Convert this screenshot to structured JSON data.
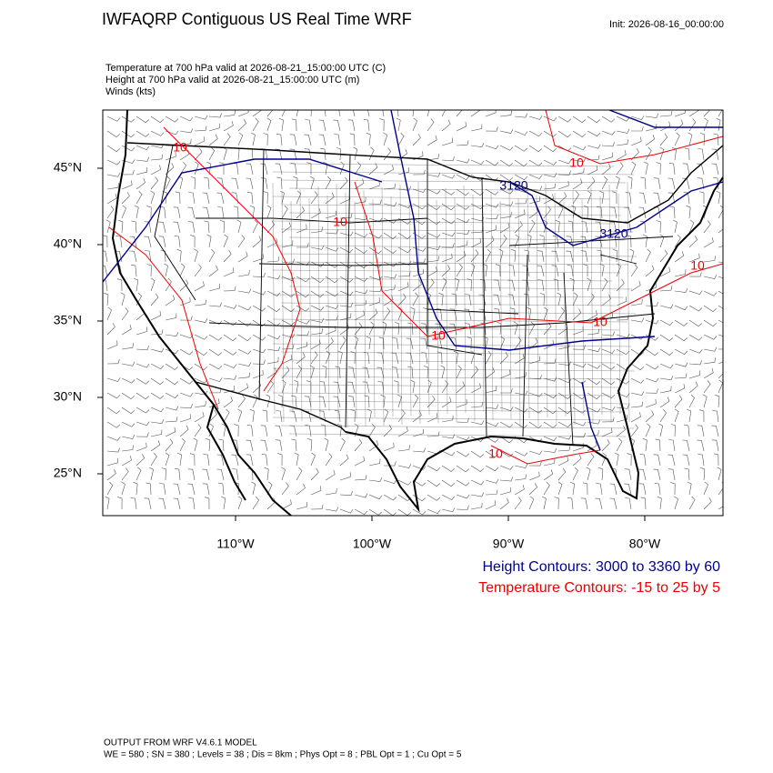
{
  "header": {
    "title": "IWFAQRP Contiguous US Real Time WRF",
    "init": "Init: 2026-08-16_00:00:00"
  },
  "fields": [
    "Temperature at 700 hPa valid at 2026-08-21_15:00:00 UTC   (C)",
    "Height at 700 hPa valid at 2026-08-21_15:00:00 UTC   (m)",
    "Winds   (kts)"
  ],
  "map": {
    "lat_labels": [
      "45°N",
      "40°N",
      "35°N",
      "30°N",
      "25°N"
    ],
    "lon_labels": [
      "110°W",
      "100°W",
      "90°W",
      "80°W"
    ],
    "contour_labels": [
      "10",
      "10",
      "10",
      "10",
      "10",
      "10",
      "10",
      "3120",
      "3120"
    ]
  },
  "legend": [
    "Height Contours: 3000 to 3360 by 60",
    "Temperature Contours: -15 to 25 by 5"
  ],
  "footer": [
    "OUTPUT FROM WRF V4.6.1 MODEL",
    "WE = 580 ; SN = 380 ; Levels = 38 ; Dis = 8km ; Phys Opt = 8 ; PBL Opt = 1 ; Cu Opt = 5"
  ]
}
